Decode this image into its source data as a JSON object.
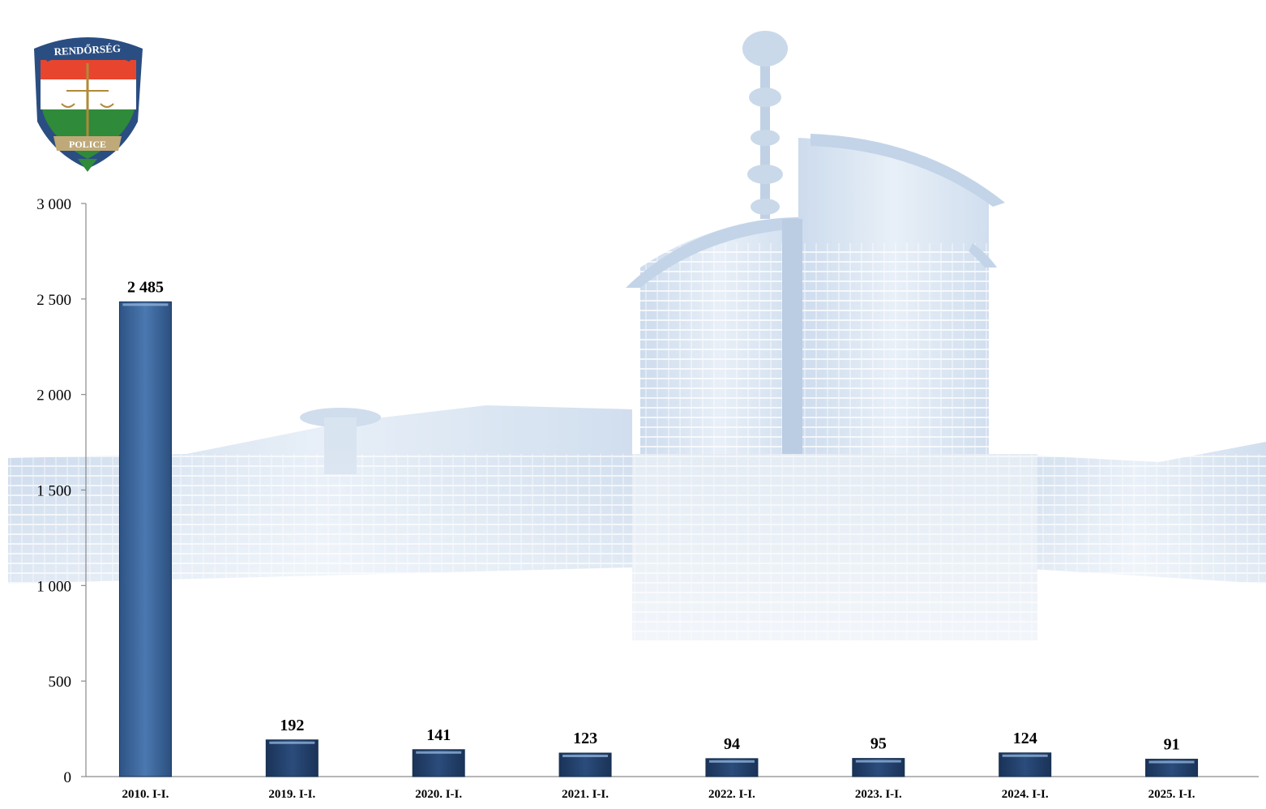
{
  "logo": {
    "top_text": "RENDŐRSÉG",
    "bottom_text": "POLICE"
  },
  "colors": {
    "bar_highlight": "#3f6aa0",
    "bar_regular": "#22416c",
    "background_tint": "#cfdcec"
  },
  "chart_data": {
    "type": "bar",
    "title": "",
    "xlabel": "",
    "ylabel": "",
    "categories": [
      "2010. I-I.",
      "2019. I-I.",
      "2020. I-I.",
      "2021. I-I.",
      "2022. I-I.",
      "2023. I-I.",
      "2024. I-I.",
      "2025. I-I."
    ],
    "values": [
      2485,
      192,
      141,
      123,
      94,
      95,
      124,
      91
    ],
    "value_labels": [
      "2 485",
      "192",
      "141",
      "123",
      "94",
      "95",
      "124",
      "91"
    ],
    "ylim": [
      0,
      3000
    ],
    "yticks": [
      0,
      500,
      1000,
      1500,
      2000,
      2500,
      3000
    ],
    "ytick_labels": [
      "0",
      "500",
      "1 000",
      "1 500",
      "2 000",
      "2 500",
      "3 000"
    ],
    "grid": false,
    "legend": "none"
  }
}
